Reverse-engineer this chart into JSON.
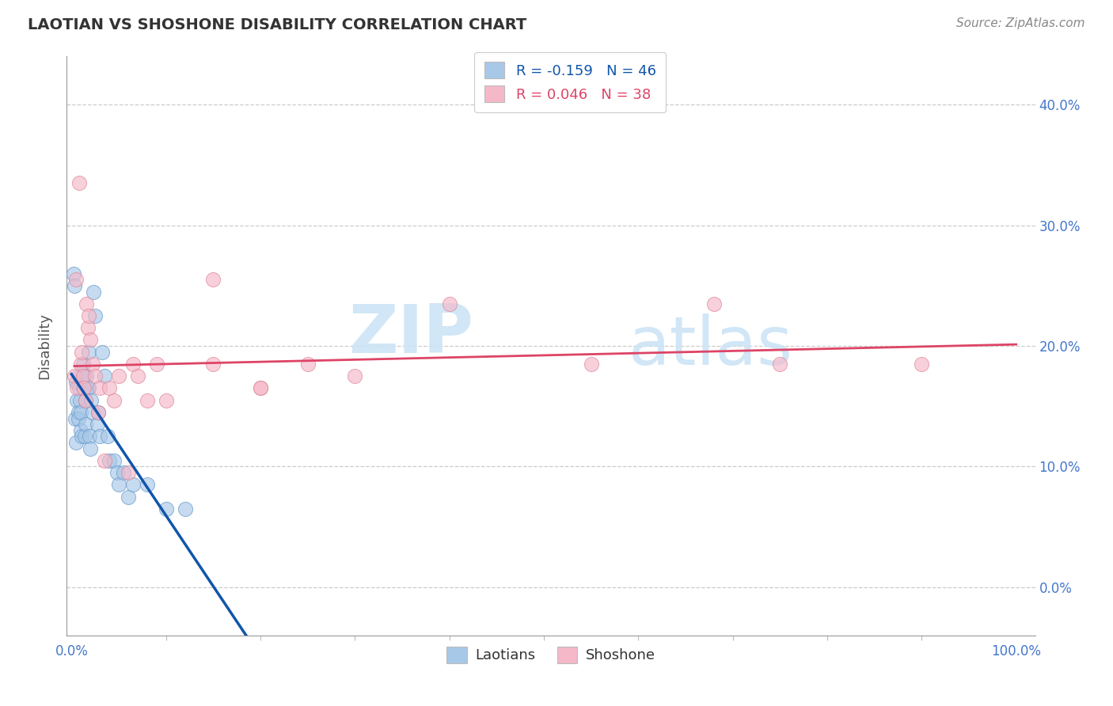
{
  "title": "LAOTIAN VS SHOSHONE DISABILITY CORRELATION CHART",
  "source": "Source: ZipAtlas.com",
  "ylabel": "Disability",
  "xlim": [
    -0.005,
    1.02
  ],
  "ylim": [
    -0.04,
    0.44
  ],
  "xtick_positions": [
    0.0,
    1.0
  ],
  "xtick_labels": [
    "0.0%",
    "100.0%"
  ],
  "ytick_positions": [
    0.0,
    0.1,
    0.2,
    0.3,
    0.4
  ],
  "ytick_labels": [
    "0.0%",
    "10.0%",
    "20.0%",
    "30.0%",
    "40.0%"
  ],
  "laotian_R": -0.159,
  "laotian_N": 46,
  "shoshone_R": 0.046,
  "shoshone_N": 38,
  "laotian_color": "#a8c8e8",
  "laotian_edge_color": "#6699cc",
  "shoshone_color": "#f5b8c8",
  "shoshone_edge_color": "#dd8899",
  "laotian_line_color": "#1155aa",
  "shoshone_line_color": "#dd4466",
  "dash_line_color": "#aaccee",
  "watermark_color": "#cce4f5",
  "laotian_x": [
    0.002,
    0.003,
    0.004,
    0.005,
    0.005,
    0.006,
    0.007,
    0.007,
    0.008,
    0.008,
    0.009,
    0.01,
    0.01,
    0.011,
    0.012,
    0.012,
    0.013,
    0.014,
    0.015,
    0.015,
    0.016,
    0.017,
    0.018,
    0.018,
    0.019,
    0.02,
    0.021,
    0.022,
    0.023,
    0.025,
    0.027,
    0.028,
    0.03,
    0.032,
    0.035,
    0.038,
    0.04,
    0.045,
    0.048,
    0.05,
    0.055,
    0.06,
    0.065,
    0.08,
    0.1,
    0.12
  ],
  "laotian_y": [
    0.26,
    0.25,
    0.14,
    0.17,
    0.12,
    0.155,
    0.145,
    0.14,
    0.175,
    0.165,
    0.155,
    0.145,
    0.13,
    0.125,
    0.185,
    0.165,
    0.175,
    0.125,
    0.155,
    0.135,
    0.175,
    0.165,
    0.165,
    0.195,
    0.125,
    0.115,
    0.155,
    0.145,
    0.245,
    0.225,
    0.135,
    0.145,
    0.125,
    0.195,
    0.175,
    0.125,
    0.105,
    0.105,
    0.095,
    0.085,
    0.095,
    0.075,
    0.085,
    0.085,
    0.065,
    0.065
  ],
  "shoshone_x": [
    0.003,
    0.005,
    0.006,
    0.008,
    0.01,
    0.011,
    0.012,
    0.013,
    0.015,
    0.016,
    0.017,
    0.018,
    0.02,
    0.022,
    0.025,
    0.028,
    0.03,
    0.035,
    0.04,
    0.045,
    0.05,
    0.06,
    0.065,
    0.07,
    0.08,
    0.09,
    0.1,
    0.15,
    0.2,
    0.25,
    0.3,
    0.4,
    0.55,
    0.68,
    0.75,
    0.9,
    0.15,
    0.2
  ],
  "shoshone_y": [
    0.175,
    0.255,
    0.165,
    0.335,
    0.185,
    0.195,
    0.175,
    0.165,
    0.155,
    0.235,
    0.215,
    0.225,
    0.205,
    0.185,
    0.175,
    0.145,
    0.165,
    0.105,
    0.165,
    0.155,
    0.175,
    0.095,
    0.185,
    0.175,
    0.155,
    0.185,
    0.155,
    0.255,
    0.165,
    0.185,
    0.175,
    0.235,
    0.185,
    0.235,
    0.185,
    0.185,
    0.185,
    0.165
  ]
}
